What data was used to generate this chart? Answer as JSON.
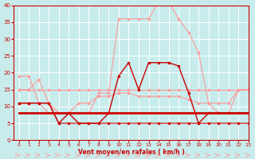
{
  "title": "",
  "xlabel": "Vent moyen/en rafales ( km/h )",
  "x_hours": [
    0,
    1,
    2,
    3,
    4,
    5,
    6,
    7,
    8,
    9,
    10,
    11,
    12,
    13,
    14,
    15,
    16,
    17,
    18,
    19,
    20,
    21,
    22,
    23
  ],
  "series_light_peak": [
    19,
    19,
    11,
    8,
    8,
    8,
    8,
    8,
    14,
    14,
    36,
    36,
    36,
    36,
    41,
    41,
    36,
    32,
    26,
    11,
    8,
    8,
    15,
    15
  ],
  "series_light_decline1": [
    15,
    15,
    18,
    11,
    8,
    8,
    11,
    11,
    13,
    13,
    14,
    14,
    13,
    13,
    13,
    13,
    13,
    12,
    11,
    11,
    11,
    11,
    15,
    15
  ],
  "series_light_flat15": [
    15,
    15,
    15,
    15,
    15,
    15,
    15,
    15,
    15,
    15,
    15,
    15,
    15,
    15,
    15,
    15,
    15,
    15,
    15,
    15,
    15,
    15,
    15,
    15
  ],
  "series_light_decline2": [
    11,
    11,
    11,
    11,
    8,
    8,
    8,
    8,
    8,
    8,
    8,
    8,
    8,
    8,
    8,
    8,
    8,
    8,
    8,
    8,
    8,
    8,
    8,
    8
  ],
  "series_dark_main": [
    11,
    11,
    11,
    11,
    5,
    8,
    5,
    5,
    5,
    8,
    19,
    23,
    15,
    23,
    23,
    23,
    22,
    14,
    5,
    8,
    8,
    8,
    8,
    8
  ],
  "series_dark_low": [
    11,
    11,
    11,
    11,
    5,
    5,
    5,
    5,
    5,
    5,
    5,
    5,
    5,
    5,
    5,
    5,
    5,
    5,
    5,
    5,
    5,
    5,
    5,
    5
  ],
  "series_dark_flat8": [
    8,
    8,
    8,
    8,
    8,
    8,
    8,
    8,
    8,
    8,
    8,
    8,
    8,
    8,
    8,
    8,
    8,
    8,
    8,
    8,
    8,
    8,
    8,
    8
  ],
  "ylim": [
    0,
    40
  ],
  "yticks": [
    0,
    5,
    10,
    15,
    20,
    25,
    30,
    35,
    40
  ],
  "bg_color": "#c8ecec",
  "grid_color": "#aadddd",
  "dark_red": "#cc0000",
  "light_red": "#ff9999",
  "xlim": [
    -0.5,
    23
  ]
}
